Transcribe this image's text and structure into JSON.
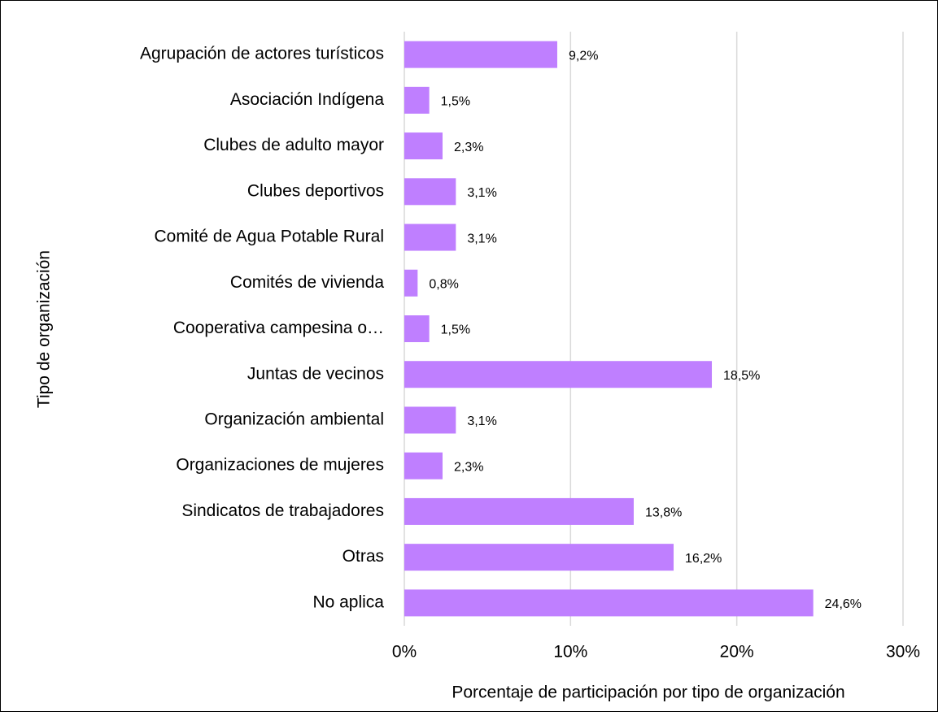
{
  "chart_data": {
    "type": "barh",
    "x_label": "Porcentaje de participación por tipo de organización",
    "y_label": "Tipo de organización",
    "categories": [
      "Agrupación de actores turísticos",
      "Asociación Indígena",
      "Clubes de adulto mayor",
      "Clubes deportivos",
      "Comité de Agua Potable Rural",
      "Comités de vivienda",
      "Cooperativa campesina o…",
      "Juntas de vecinos",
      "Organización ambiental",
      "Organizaciones de mujeres",
      "Sindicatos de trabajadores",
      "Otras",
      "No aplica"
    ],
    "values": [
      9.2,
      1.5,
      2.3,
      3.1,
      3.1,
      0.8,
      1.5,
      18.5,
      3.1,
      2.3,
      13.8,
      16.2,
      24.6
    ],
    "value_labels": [
      "9,2%",
      "1,5%",
      "2,3%",
      "3,1%",
      "3,1%",
      "0,8%",
      "1,5%",
      "18,5%",
      "3,1%",
      "2,3%",
      "13,8%",
      "16,2%",
      "24,6%"
    ],
    "color": "#bf7fff",
    "xlim": [
      0,
      30
    ],
    "xticks": [
      {
        "value": 0,
        "label": "0%"
      },
      {
        "value": 10,
        "label": "10%"
      },
      {
        "value": 20,
        "label": "20%"
      },
      {
        "value": 30,
        "label": "30%"
      }
    ],
    "grid": true
  }
}
